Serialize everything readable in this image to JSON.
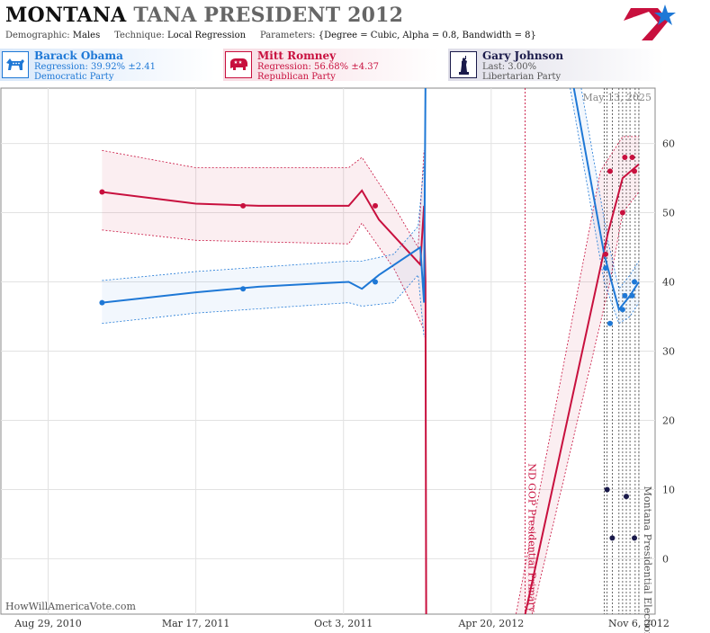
{
  "header": {
    "title_state": "MONTANA",
    "title_rest": "TANA PRESIDENT 2012",
    "demographic_label": "Demographic:",
    "demographic_value": "Males",
    "technique_label": "Technique:",
    "technique_value": "Local Regression",
    "parameters_label": "Parameters:",
    "parameters_value": "{Degree = Cubic, Alpha = 0.8, Bandwidth = 8}"
  },
  "candidates": [
    {
      "name": "Barack Obama",
      "stat": "Regression: 39.92% ±2.41",
      "party": "Democratic Party",
      "color": "#1e78d6"
    },
    {
      "name": "Mitt Romney",
      "stat": "Regression: 56.68% ±4.37",
      "party": "Republican Party",
      "color": "#c8103e"
    },
    {
      "name": "Gary Johnson",
      "stat": "Last: 3.00%",
      "party": "Libertarian Party",
      "color": "#1a1a4a"
    }
  ],
  "watermark": "HowWillAmericaVote.com",
  "chart_data": {
    "type": "line",
    "date_label": "May 13, 2025",
    "xlim": [
      "2010-06-26",
      "2012-11-28"
    ],
    "ylim": [
      -8,
      68
    ],
    "yticks": [
      0,
      10,
      20,
      30,
      40,
      50,
      60
    ],
    "xticks": [
      {
        "date": "2010-08-29",
        "label": "Aug 29, 2010"
      },
      {
        "date": "2011-03-17",
        "label": "Mar 17, 2011"
      },
      {
        "date": "2011-10-03",
        "label": "Oct 3, 2011"
      },
      {
        "date": "2012-04-20",
        "label": "Apr 20, 2012"
      },
      {
        "date": "2012-11-06",
        "label": "Nov 6, 2012"
      }
    ],
    "grid": true,
    "events": [
      {
        "date": "2012-06-05",
        "label": "ND GOP Presidential Primary",
        "color": "#c8103e"
      },
      {
        "date": "2012-11-06",
        "label": "Montana Presidential Election",
        "color": "#555555"
      }
    ],
    "poll_dates": [
      "2012-09-20",
      "2012-09-24",
      "2012-10-01",
      "2012-10-10",
      "2012-10-15",
      "2012-10-20",
      "2012-10-25",
      "2012-11-01"
    ],
    "series": [
      {
        "name": "Mitt Romney",
        "color": "#c8103e",
        "points": [
          [
            "2010-11-10",
            53
          ],
          [
            "2011-05-20",
            51
          ],
          [
            "2011-11-15",
            51
          ],
          [
            "2012-09-22",
            44
          ],
          [
            "2012-09-28",
            56
          ],
          [
            "2012-10-15",
            50
          ],
          [
            "2012-10-18",
            58
          ],
          [
            "2012-10-28",
            58
          ],
          [
            "2012-10-31",
            56
          ]
        ],
        "trend": [
          [
            "2010-11-10",
            53
          ],
          [
            "2011-03-17",
            51.3
          ],
          [
            "2011-06-10",
            51
          ],
          [
            "2011-10-10",
            51
          ],
          [
            "2011-10-28",
            53.2
          ],
          [
            "2011-11-20",
            49
          ],
          [
            "2012-01-15",
            42.5
          ],
          [
            "2012-01-20",
            51
          ],
          [
            "2012-01-22",
            40
          ],
          [
            "2012-01-23",
            -8
          ]
        ],
        "band_upper": [
          [
            "2010-11-10",
            59
          ],
          [
            "2011-03-17",
            56.5
          ],
          [
            "2011-10-10",
            56.5
          ],
          [
            "2011-10-28",
            58
          ],
          [
            "2011-12-10",
            51
          ],
          [
            "2012-01-12",
            45
          ],
          [
            "2012-01-20",
            59
          ]
        ],
        "band_lower": [
          [
            "2010-11-10",
            47.5
          ],
          [
            "2011-03-17",
            46
          ],
          [
            "2011-10-10",
            45.5
          ],
          [
            "2011-10-28",
            48.5
          ],
          [
            "2011-12-10",
            42
          ],
          [
            "2012-01-12",
            35
          ],
          [
            "2012-01-20",
            33
          ]
        ],
        "trend2": [
          [
            "2012-06-01",
            -10
          ],
          [
            "2012-09-25",
            47
          ],
          [
            "2012-10-15",
            55
          ],
          [
            "2012-11-06",
            57
          ]
        ],
        "band2_upper": [
          [
            "2012-05-20",
            -10
          ],
          [
            "2012-09-15",
            56
          ],
          [
            "2012-10-15",
            61
          ],
          [
            "2012-11-06",
            61
          ]
        ],
        "band2_lower": [
          [
            "2012-06-10",
            -10
          ],
          [
            "2012-09-28",
            40
          ],
          [
            "2012-10-15",
            50
          ],
          [
            "2012-11-06",
            53
          ]
        ]
      },
      {
        "name": "Barack Obama",
        "color": "#1e78d6",
        "points": [
          [
            "2010-11-10",
            37
          ],
          [
            "2011-05-20",
            39
          ],
          [
            "2011-11-15",
            40
          ],
          [
            "2012-09-22",
            42
          ],
          [
            "2012-09-28",
            34
          ],
          [
            "2012-10-15",
            36
          ],
          [
            "2012-10-18",
            38
          ],
          [
            "2012-10-28",
            38
          ],
          [
            "2012-10-31",
            40
          ]
        ],
        "trend": [
          [
            "2010-11-10",
            37
          ],
          [
            "2011-03-17",
            38.5
          ],
          [
            "2011-06-10",
            39.3
          ],
          [
            "2011-10-10",
            40
          ],
          [
            "2011-10-28",
            39
          ],
          [
            "2011-11-20",
            41
          ],
          [
            "2012-01-15",
            45
          ],
          [
            "2012-01-20",
            37
          ],
          [
            "2012-01-22",
            68
          ]
        ],
        "band_upper": [
          [
            "2010-11-10",
            40.2
          ],
          [
            "2011-03-17",
            41.5
          ],
          [
            "2011-10-10",
            43
          ],
          [
            "2011-10-28",
            43
          ],
          [
            "2011-12-10",
            44
          ],
          [
            "2012-01-12",
            48
          ],
          [
            "2012-01-20",
            57
          ]
        ],
        "band_lower": [
          [
            "2010-11-10",
            34
          ],
          [
            "2011-03-17",
            35.5
          ],
          [
            "2011-10-10",
            37
          ],
          [
            "2011-10-28",
            36.5
          ],
          [
            "2011-12-10",
            37
          ],
          [
            "2012-01-12",
            41
          ],
          [
            "2012-01-20",
            32
          ]
        ],
        "trend2": [
          [
            "2012-08-10",
            68
          ],
          [
            "2012-09-20",
            44
          ],
          [
            "2012-10-10",
            36
          ],
          [
            "2012-10-25",
            38
          ],
          [
            "2012-11-06",
            40
          ]
        ],
        "band2_upper": [
          [
            "2012-08-20",
            68
          ],
          [
            "2012-09-25",
            46
          ],
          [
            "2012-10-10",
            39
          ],
          [
            "2012-10-25",
            41
          ],
          [
            "2012-11-06",
            43
          ]
        ],
        "band2_lower": [
          [
            "2012-08-05",
            68
          ],
          [
            "2012-09-20",
            40
          ],
          [
            "2012-10-10",
            34
          ],
          [
            "2012-10-25",
            35
          ],
          [
            "2012-11-06",
            37
          ]
        ]
      },
      {
        "name": "Gary Johnson",
        "color": "#1a1a4a",
        "points": [
          [
            "2012-09-24",
            10
          ],
          [
            "2012-10-01",
            3
          ],
          [
            "2012-10-20",
            9
          ],
          [
            "2012-10-31",
            3
          ]
        ]
      }
    ]
  }
}
